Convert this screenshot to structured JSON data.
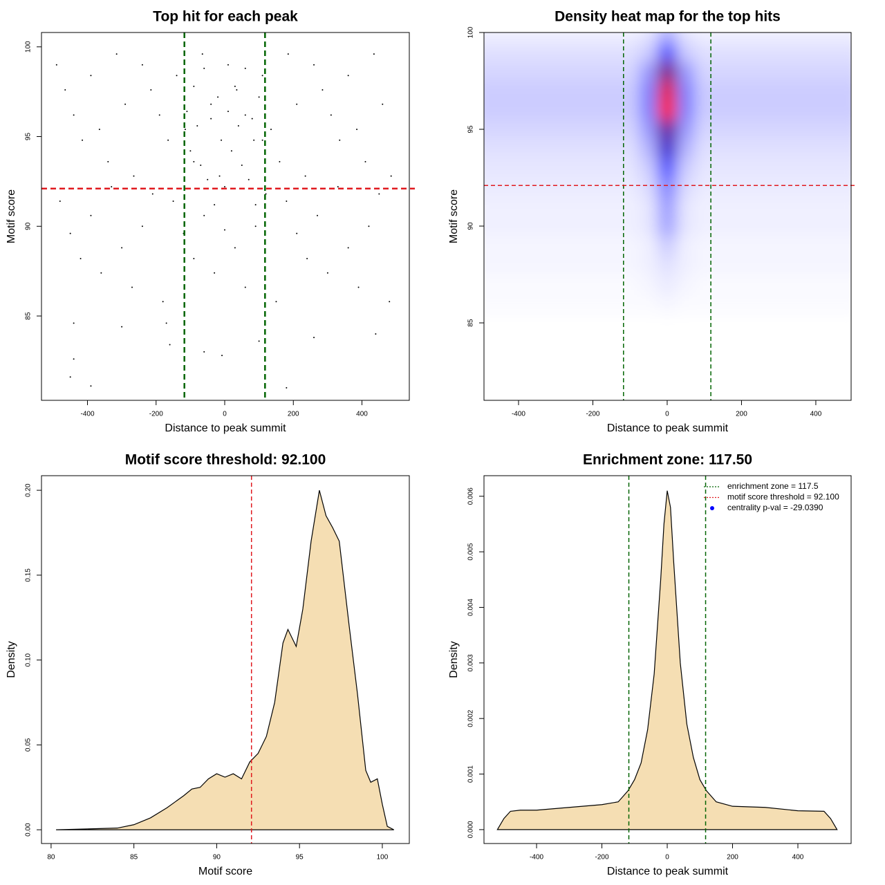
{
  "chart_data": [
    {
      "type": "scatter",
      "title": "Top hit for each peak",
      "x_label": "Distance to peak summit",
      "y_label": "Motif score",
      "x": [
        -490,
        -465,
        -440,
        -415,
        -390,
        -365,
        -340,
        -315,
        -290,
        -265,
        -240,
        -215,
        -190,
        -165,
        -140,
        -115,
        -90,
        -65,
        -40,
        -15,
        10,
        35,
        60,
        85,
        110,
        135,
        160,
        185,
        210,
        235,
        260,
        285,
        310,
        335,
        360,
        385,
        410,
        435,
        460,
        485,
        -480,
        -450,
        -420,
        -390,
        -360,
        -330,
        -300,
        -270,
        -240,
        -210,
        -180,
        -150,
        -120,
        -90,
        -60,
        -30,
        0,
        30,
        60,
        90,
        120,
        150,
        180,
        210,
        240,
        270,
        300,
        330,
        360,
        390,
        420,
        450,
        480,
        -110,
        -100,
        -90,
        -80,
        -70,
        -60,
        -50,
        -40,
        -30,
        -20,
        -10,
        0,
        10,
        20,
        30,
        40,
        50,
        60,
        70,
        80,
        90,
        100,
        110,
        -440,
        -300,
        -170,
        -160,
        -60,
        -8,
        100,
        260,
        440,
        -440,
        -450,
        -390,
        180
      ],
      "values": [
        99,
        97.6,
        96.2,
        94.8,
        98.4,
        95.4,
        93.6,
        99.6,
        96.8,
        92.8,
        99,
        97.6,
        96.2,
        94.8,
        98.4,
        95.4,
        93.6,
        99.6,
        96.8,
        92.8,
        99,
        97.6,
        96.2,
        94.8,
        98.4,
        95.4,
        93.6,
        99.6,
        96.8,
        92.8,
        99,
        97.6,
        96.2,
        94.8,
        98.4,
        95.4,
        93.6,
        99.6,
        96.8,
        92.8,
        91.4,
        89.6,
        88.2,
        90.6,
        87.4,
        92.2,
        88.8,
        86.6,
        90,
        91.8,
        85.8,
        91.4,
        89.6,
        88.2,
        90.6,
        87.4,
        92.2,
        88.8,
        86.6,
        90,
        91.8,
        85.8,
        91.4,
        89.6,
        88.2,
        90.6,
        87.4,
        92.2,
        88.8,
        86.6,
        90,
        91.8,
        85.8,
        96.4,
        94.2,
        97.8,
        95.6,
        93.4,
        98.8,
        92.6,
        96,
        91.2,
        97.2,
        94.8,
        89.8,
        96.4,
        94.2,
        97.8,
        95.6,
        93.4,
        98.8,
        92.6,
        96,
        91.2,
        97.2,
        94.8,
        84.6,
        84.4,
        84.6,
        83.4,
        83,
        82.8,
        83.6,
        83.8,
        84,
        82.6,
        81.6,
        81.1,
        81
      ],
      "color": "#000000",
      "xlim": [
        -534,
        538
      ],
      "ylim": [
        80.3,
        100.8
      ],
      "xticks": [
        -400,
        -200,
        0,
        200,
        400
      ],
      "yticks": [
        85,
        90,
        95,
        100
      ],
      "vlines": [
        -117.5,
        117.5
      ],
      "vline_color": "#006400",
      "hline": 92.1,
      "hline_color": "#e0191e"
    },
    {
      "type": "heatmap",
      "title": "Density heat map for the top hits",
      "x_label": "Distance to peak summit",
      "y_label": "Motif score",
      "x": [
        -500,
        -450,
        -400,
        -350,
        -300,
        -250,
        -200,
        -150,
        -100,
        -50,
        0,
        50,
        100,
        150,
        200,
        250,
        300,
        350,
        400,
        450,
        500
      ],
      "y": [
        86,
        87,
        88,
        89,
        90,
        91,
        92,
        93,
        94,
        95,
        96,
        97,
        98,
        99,
        100
      ],
      "z": [
        [
          0.01,
          0.01,
          0.01,
          0.01,
          0.01,
          0.01,
          0.01,
          0.01,
          0.01,
          0.01,
          0.02,
          0.01,
          0.01,
          0.01,
          0.01,
          0.01,
          0.01,
          0.01,
          0.01,
          0.01,
          0.01
        ],
        [
          0.01,
          0.01,
          0.01,
          0.01,
          0.01,
          0.01,
          0.01,
          0.01,
          0.01,
          0.02,
          0.04,
          0.02,
          0.01,
          0.01,
          0.01,
          0.01,
          0.01,
          0.01,
          0.01,
          0.01,
          0.01
        ],
        [
          0.02,
          0.02,
          0.02,
          0.02,
          0.02,
          0.02,
          0.02,
          0.02,
          0.02,
          0.03,
          0.06,
          0.03,
          0.02,
          0.02,
          0.02,
          0.02,
          0.02,
          0.02,
          0.02,
          0.02,
          0.02
        ],
        [
          0.02,
          0.02,
          0.02,
          0.02,
          0.02,
          0.02,
          0.02,
          0.02,
          0.02,
          0.03,
          0.1,
          0.03,
          0.02,
          0.02,
          0.02,
          0.02,
          0.02,
          0.02,
          0.02,
          0.02,
          0.02
        ],
        [
          0.03,
          0.03,
          0.03,
          0.03,
          0.03,
          0.03,
          0.03,
          0.03,
          0.03,
          0.05,
          0.18,
          0.05,
          0.03,
          0.03,
          0.03,
          0.03,
          0.03,
          0.03,
          0.03,
          0.03,
          0.03
        ],
        [
          0.03,
          0.03,
          0.03,
          0.03,
          0.03,
          0.03,
          0.03,
          0.03,
          0.03,
          0.05,
          0.2,
          0.05,
          0.03,
          0.03,
          0.03,
          0.03,
          0.03,
          0.03,
          0.03,
          0.03,
          0.03
        ],
        [
          0.04,
          0.04,
          0.04,
          0.04,
          0.04,
          0.04,
          0.04,
          0.04,
          0.04,
          0.07,
          0.25,
          0.07,
          0.04,
          0.04,
          0.04,
          0.04,
          0.04,
          0.04,
          0.04,
          0.04,
          0.04
        ],
        [
          0.05,
          0.05,
          0.05,
          0.05,
          0.05,
          0.05,
          0.05,
          0.05,
          0.05,
          0.1,
          0.35,
          0.1,
          0.05,
          0.05,
          0.05,
          0.05,
          0.05,
          0.05,
          0.05,
          0.05,
          0.05
        ],
        [
          0.06,
          0.06,
          0.06,
          0.06,
          0.06,
          0.06,
          0.06,
          0.06,
          0.06,
          0.15,
          0.6,
          0.15,
          0.06,
          0.06,
          0.06,
          0.06,
          0.06,
          0.06,
          0.06,
          0.06,
          0.06
        ],
        [
          0.08,
          0.08,
          0.08,
          0.08,
          0.08,
          0.08,
          0.08,
          0.08,
          0.08,
          0.2,
          0.7,
          0.2,
          0.08,
          0.08,
          0.08,
          0.08,
          0.08,
          0.08,
          0.08,
          0.08,
          0.08
        ],
        [
          0.1,
          0.1,
          0.1,
          0.1,
          0.1,
          0.1,
          0.1,
          0.1,
          0.1,
          0.25,
          1,
          0.25,
          0.1,
          0.1,
          0.1,
          0.1,
          0.1,
          0.1,
          0.1,
          0.1,
          0.1
        ],
        [
          0.1,
          0.1,
          0.1,
          0.1,
          0.1,
          0.1,
          0.1,
          0.1,
          0.1,
          0.25,
          0.95,
          0.25,
          0.1,
          0.1,
          0.1,
          0.1,
          0.1,
          0.1,
          0.1,
          0.1,
          0.1
        ],
        [
          0.08,
          0.08,
          0.08,
          0.08,
          0.08,
          0.08,
          0.08,
          0.08,
          0.08,
          0.2,
          0.75,
          0.2,
          0.08,
          0.08,
          0.08,
          0.08,
          0.08,
          0.08,
          0.08,
          0.08,
          0.08
        ],
        [
          0.06,
          0.06,
          0.06,
          0.06,
          0.06,
          0.06,
          0.06,
          0.06,
          0.06,
          0.1,
          0.35,
          0.1,
          0.06,
          0.06,
          0.06,
          0.06,
          0.06,
          0.06,
          0.06,
          0.06,
          0.06
        ],
        [
          0.03,
          0.03,
          0.03,
          0.03,
          0.03,
          0.03,
          0.03,
          0.03,
          0.03,
          0.05,
          0.15,
          0.05,
          0.03,
          0.03,
          0.03,
          0.03,
          0.03,
          0.03,
          0.03,
          0.03,
          0.03
        ]
      ],
      "colorscale": [
        "#ffffff",
        "#0000ff",
        "#ff0000"
      ],
      "xlim": [
        -493,
        495
      ],
      "ylim": [
        81,
        100
      ],
      "xticks": [
        -400,
        -200,
        0,
        200,
        400
      ],
      "yticks": [
        85,
        90,
        95,
        100
      ],
      "vlines": [
        -117.5,
        117.5
      ],
      "vline_color": "#006400",
      "hline": 92.1,
      "hline_color": "#e0191e"
    },
    {
      "type": "area",
      "title": "Motif score threshold: 92.100",
      "x_label": "Motif score",
      "y_label": "Density",
      "x": [
        80.3,
        84,
        85,
        86,
        87,
        88,
        88.5,
        89,
        89.5,
        90,
        90.5,
        91,
        91.5,
        92,
        92.5,
        93,
        93.5,
        94,
        94.3,
        94.8,
        95.2,
        95.7,
        96.2,
        96.6,
        97,
        97.4,
        98,
        98.5,
        99,
        99.3,
        99.7,
        100,
        100.3,
        100.7
      ],
      "values": [
        0,
        0.001,
        0.003,
        0.007,
        0.013,
        0.02,
        0.024,
        0.025,
        0.03,
        0.033,
        0.031,
        0.033,
        0.03,
        0.04,
        0.045,
        0.055,
        0.075,
        0.11,
        0.118,
        0.108,
        0.13,
        0.17,
        0.2,
        0.185,
        0.178,
        0.17,
        0.12,
        0.08,
        0.035,
        0.028,
        0.03,
        0.015,
        0.002,
        0
      ],
      "color": "#f5deb3",
      "xlim": [
        79.42,
        101.63
      ],
      "ylim": [
        -0.0081,
        0.2086
      ],
      "xticks": [
        80,
        85,
        90,
        95,
        100
      ],
      "yticks": [
        {
          "value": 0,
          "label": "0.00"
        },
        {
          "value": 0.05,
          "label": "0.05"
        },
        {
          "value": 0.1,
          "label": "0.10"
        },
        {
          "value": 0.15,
          "label": "0.15"
        },
        {
          "value": 0.2,
          "label": "0.20"
        }
      ],
      "vlines": [
        92.1
      ],
      "vline_color": "#e0191e"
    },
    {
      "type": "area",
      "title": "Enrichment zone: 117.50",
      "x_label": "Distance to peak summit",
      "y_label": "Density",
      "x": [
        -520,
        -500,
        -480,
        -450,
        -400,
        -300,
        -200,
        -150,
        -120,
        -100,
        -80,
        -60,
        -40,
        -20,
        -10,
        0,
        10,
        20,
        40,
        60,
        80,
        100,
        120,
        150,
        200,
        300,
        400,
        480,
        500,
        520
      ],
      "values": [
        0,
        0.0002,
        0.00033,
        0.00035,
        0.00035,
        0.0004,
        0.00045,
        0.0005,
        0.0007,
        0.0009,
        0.0012,
        0.0018,
        0.0028,
        0.0045,
        0.0055,
        0.0061,
        0.0058,
        0.0048,
        0.003,
        0.0019,
        0.0013,
        0.0009,
        0.0007,
        0.0005,
        0.00042,
        0.0004,
        0.00034,
        0.00033,
        0.0002,
        0
      ],
      "color": "#f5deb3",
      "xlim": [
        -561,
        563
      ],
      "ylim": [
        -0.00025,
        0.00637
      ],
      "xticks": [
        -400,
        -200,
        0,
        200,
        400
      ],
      "yticks": [
        {
          "value": 0,
          "label": "0.000"
        },
        {
          "value": 0.001,
          "label": "0.001"
        },
        {
          "value": 0.002,
          "label": "0.002"
        },
        {
          "value": 0.003,
          "label": "0.003"
        },
        {
          "value": 0.004,
          "label": "0.004"
        },
        {
          "value": 0.005,
          "label": "0.005"
        },
        {
          "value": 0.006,
          "label": "0.006"
        }
      ],
      "vlines": [
        -117.5,
        117.5
      ],
      "vline_color": "#006400",
      "legend": {
        "position": "topright",
        "entries": [
          {
            "label": "enrichment zone = 117.5",
            "color": "#006400",
            "style": "dotted"
          },
          {
            "label": "motif score threshold = 92.100",
            "color": "#e0191e",
            "style": "dotted"
          },
          {
            "label": "centrality p-val = -29.0390",
            "color": "#0000ff",
            "style": "point"
          }
        ]
      }
    }
  ]
}
